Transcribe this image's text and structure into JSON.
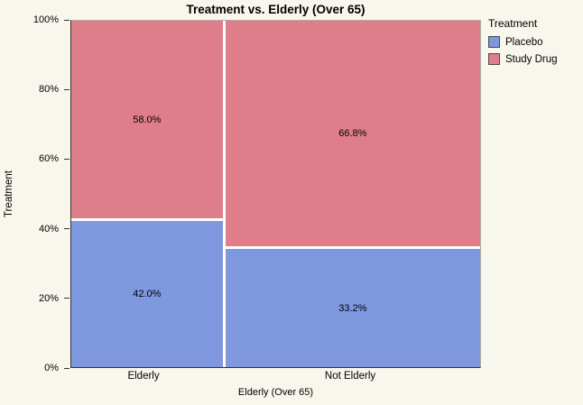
{
  "chart_data": {
    "type": "mosaic",
    "title": "Treatment vs. Elderly (Over 65)",
    "xlabel": "Elderly (Over 65)",
    "ylabel": "Treatment",
    "categories": [
      "Elderly",
      "Not Elderly"
    ],
    "column_widths_pct": [
      35.2,
      64.8
    ],
    "series": [
      {
        "name": "Placebo",
        "color": "#7e97de",
        "values_pct": [
          42.0,
          33.2
        ],
        "labels": [
          "42.0%",
          "33.2%"
        ]
      },
      {
        "name": "Study Drug",
        "color": "#de7e8a",
        "values_pct": [
          58.0,
          66.8
        ],
        "labels": [
          "58.0%",
          "66.8%"
        ]
      }
    ],
    "stack_order_top_to_bottom": [
      "Study Drug",
      "Placebo"
    ],
    "y_ticks": [
      "0%",
      "20%",
      "40%",
      "60%",
      "80%",
      "100%"
    ],
    "ylim": [
      0,
      100
    ],
    "grid": false,
    "legend_position": "right",
    "legend": {
      "title": "Treatment",
      "items": [
        {
          "label": "Placebo",
          "color": "#7e97de"
        },
        {
          "label": "Study Drug",
          "color": "#de7e8a"
        }
      ]
    }
  },
  "colors": {
    "background": "#f8f7ee",
    "tile_gap": "#ffffff",
    "axis": "#333333"
  }
}
